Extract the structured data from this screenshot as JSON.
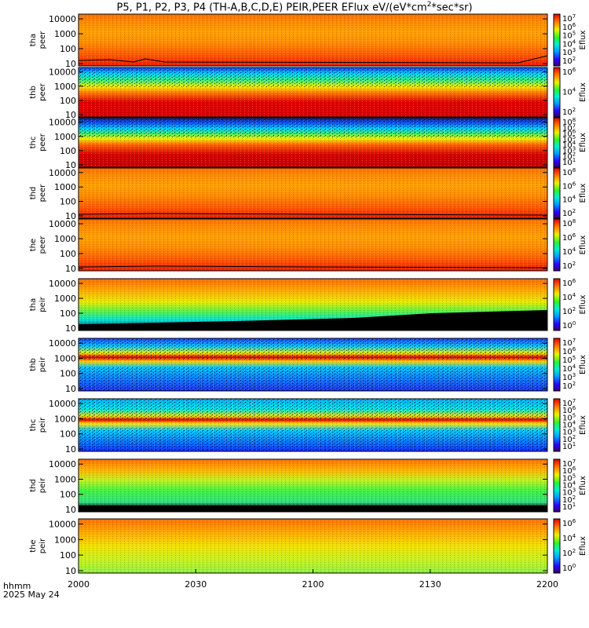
{
  "title_prefix": "P5, P1, P2, P3, P4 (TH-A,B,C,D,E) PEIR,PEER EFlux eV/(eV*cm",
  "title_sup": "2",
  "title_suffix": "*sec*sr)",
  "footer": {
    "hhmm": "hhmm",
    "date": "2025 May 24"
  },
  "chart_data": {
    "type": "heatmap",
    "x_ticks": [
      "2000",
      "2030",
      "2100",
      "2130",
      "2200"
    ],
    "x_range_minutes": [
      0,
      120
    ],
    "y_scale": "log",
    "y_ticks": [
      "10",
      "100",
      "1000",
      "10000"
    ],
    "colorbar_label": "Eflux",
    "panels": [
      {
        "probe": "tha",
        "species": "peer",
        "cb_exp": [
          2,
          3,
          4,
          5,
          6,
          7
        ],
        "line": "tha-peer-line",
        "bg": "hot"
      },
      {
        "probe": "thb",
        "species": "peer",
        "cb_exp": [
          2,
          4,
          6
        ],
        "bg": "hot-noisy"
      },
      {
        "probe": "thc",
        "species": "peer",
        "cb_exp": [
          1,
          2,
          3,
          4,
          5,
          6,
          7,
          8
        ],
        "bg": "hot-noisy2"
      },
      {
        "probe": "thd",
        "species": "peer",
        "cb_exp": [
          2,
          4,
          6,
          8
        ],
        "line": "thd-peer-line",
        "bg": "hot"
      },
      {
        "probe": "the",
        "species": "peer",
        "cb_exp": [
          2,
          4,
          6,
          8
        ],
        "line": "the-peer-line",
        "bg": "hot"
      },
      {
        "probe": "tha",
        "species": "peir",
        "cb_exp": [
          0,
          2,
          4,
          6
        ],
        "bg": "ion-a"
      },
      {
        "probe": "thb",
        "species": "peir",
        "cb_exp": [
          2,
          3,
          4,
          5,
          6,
          7
        ],
        "bg": "ion-b"
      },
      {
        "probe": "thc",
        "species": "peir",
        "cb_exp": [
          1,
          2,
          3,
          4,
          5,
          6,
          7
        ],
        "bg": "ion-c"
      },
      {
        "probe": "thd",
        "species": "peir",
        "cb_exp": [
          1,
          2,
          3,
          4,
          5,
          6,
          7
        ],
        "bg": "ion-d"
      },
      {
        "probe": "the",
        "species": "peir",
        "cb_exp": [
          0,
          2,
          4,
          6
        ],
        "bg": "ion-e"
      }
    ]
  }
}
